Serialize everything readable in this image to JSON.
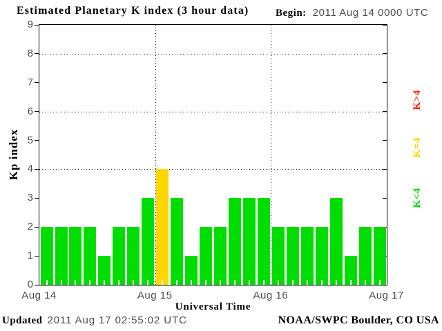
{
  "title": "Estimated Planetary K index (3 hour data)",
  "begin": {
    "label": "Begin:",
    "value": "2011 Aug 14 0000 UTC"
  },
  "y_axis": {
    "label": "Kp index",
    "ticks": [
      "0",
      "1",
      "2",
      "3",
      "4",
      "5",
      "6",
      "7",
      "8",
      "9"
    ],
    "gridlines": [
      4,
      6,
      8
    ],
    "max": 9
  },
  "x_axis": {
    "label": "Universal Time",
    "day_labels": [
      "Aug 14",
      "Aug 15",
      "Aug 16",
      "Aug 17"
    ]
  },
  "legend": {
    "items": [
      {
        "label": "K>4",
        "color": "#fb1e00"
      },
      {
        "label": "K=4",
        "color": "#ffd700"
      },
      {
        "label": "K<4",
        "color": "#00dd00"
      }
    ]
  },
  "footer": {
    "updated_label": "Updated",
    "updated_value": "2011 Aug 17 02:55:02 UTC",
    "source": "NOAA/SWPC Boulder, CO USA"
  },
  "chart_data": {
    "type": "bar",
    "title": "Estimated Planetary K index (3 hour data)",
    "xlabel": "Universal Time",
    "ylabel": "Kp index",
    "ylim": [
      0,
      9
    ],
    "interval_hours": 3,
    "begin": "2011 Aug 14 0000 UTC",
    "day_boundaries": [
      "Aug 14",
      "Aug 15",
      "Aug 16",
      "Aug 17"
    ],
    "values": [
      2,
      2,
      2,
      2,
      1,
      2,
      2,
      3,
      4,
      3,
      1,
      2,
      2,
      3,
      3,
      3,
      2,
      2,
      2,
      2,
      3,
      1,
      2,
      2
    ],
    "colors": {
      "lt4": "#00dd00",
      "eq4": "#ffd700",
      "gt4": "#fb1e00"
    },
    "grid": {
      "horizontal_dotted_at": [
        4,
        6,
        8
      ],
      "vertical_dotted_at_day_boundaries": true
    },
    "legend_position": "right"
  }
}
